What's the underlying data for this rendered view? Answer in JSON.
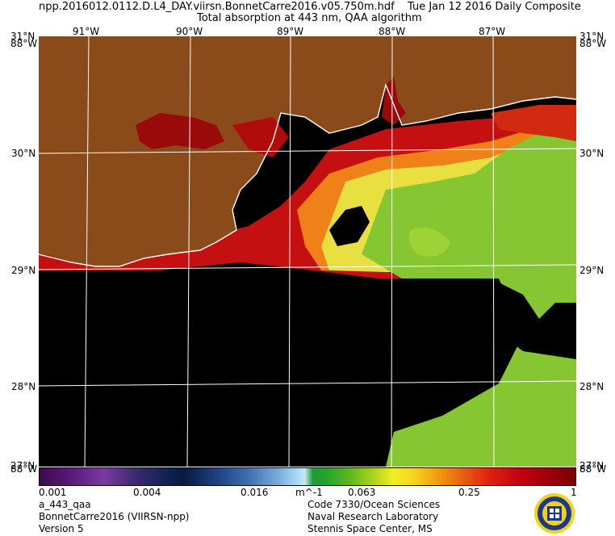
{
  "header": {
    "filename": "npp.2016012.0112.D.L4_DAY.viirsn.BonnetCarre2016.v05.750m.hdf",
    "date": "Tue Jan 12 2016 Daily Composite",
    "product": "Total absorption at 443 nm, QAA algorithm"
  },
  "map": {
    "lon_labels": [
      "91°W",
      "90°W",
      "89°W",
      "88°W",
      "87°W"
    ],
    "lat_labels": [
      "31°N",
      "30°N",
      "29°N",
      "28°N",
      "27°N"
    ],
    "corner_top_left": "31°N",
    "corner_top_left_b": "88°W",
    "corner_top_right": "31°N",
    "corner_top_right_b": "88°W",
    "corner_bottom_left": "88°W",
    "corner_bottom_right": "88°W",
    "colors": {
      "land": "#8b4a1a",
      "no_data": "#000000",
      "coast": "#ffffff"
    }
  },
  "colorbar": {
    "tick_labels": [
      "0.001",
      "0.004",
      "0.016",
      "0.063",
      "0.25",
      "1"
    ],
    "units": "m^-1"
  },
  "footer": {
    "left": [
      "a_443_qaa",
      "BonnetCarre2016 (VIIRSN-npp)",
      "Version 5"
    ],
    "right": [
      "Code 7330/Ocean Sciences",
      "Naval Research Laboratory",
      "Stennis Space Center, MS"
    ]
  }
}
